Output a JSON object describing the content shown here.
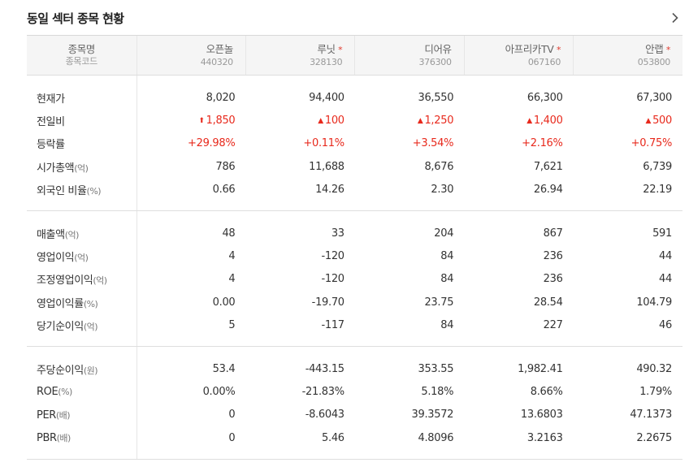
{
  "header": {
    "title": "동일 섹터 종목 현황"
  },
  "table": {
    "header_row": {
      "name_label": "종목명",
      "code_label": "종목코드"
    },
    "companies": [
      {
        "name": "오픈놀",
        "code": "440320",
        "star": ""
      },
      {
        "name": "루닛",
        "code": "328130",
        "star": "*"
      },
      {
        "name": "디어유",
        "code": "376300",
        "star": ""
      },
      {
        "name": "아프리카TV",
        "code": "067160",
        "star": "*"
      },
      {
        "name": "안랩",
        "code": "053800",
        "star": "*"
      }
    ],
    "groups": [
      {
        "rows": [
          {
            "label": "현재가",
            "unit": "",
            "values": [
              "8,020",
              "94,400",
              "36,550",
              "66,300",
              "67,300"
            ],
            "style": "plain"
          },
          {
            "label": "전일비",
            "unit": "",
            "values": [
              "1,850",
              "100",
              "1,250",
              "1,400",
              "500"
            ],
            "style": "red",
            "arrows": [
              "⬆",
              "▲",
              "▲",
              "▲",
              "▲"
            ]
          },
          {
            "label": "등락률",
            "unit": "",
            "values": [
              "+29.98%",
              "+0.11%",
              "+3.54%",
              "+2.16%",
              "+0.75%"
            ],
            "style": "red"
          },
          {
            "label": "시가총액",
            "unit": "(억)",
            "values": [
              "786",
              "11,688",
              "8,676",
              "7,621",
              "6,739"
            ],
            "style": "plain"
          },
          {
            "label": "외국인 비율",
            "unit": "(%)",
            "values": [
              "0.66",
              "14.26",
              "2.30",
              "26.94",
              "22.19"
            ],
            "style": "plain"
          }
        ]
      },
      {
        "rows": [
          {
            "label": "매출액",
            "unit": "(억)",
            "values": [
              "48",
              "33",
              "204",
              "867",
              "591"
            ],
            "style": "plain"
          },
          {
            "label": "영업이익",
            "unit": "(억)",
            "values": [
              "4",
              "-120",
              "84",
              "236",
              "44"
            ],
            "style": "plain"
          },
          {
            "label": "조정영업이익",
            "unit": "(억)",
            "values": [
              "4",
              "-120",
              "84",
              "236",
              "44"
            ],
            "style": "plain"
          },
          {
            "label": "영업이익률",
            "unit": "(%)",
            "values": [
              "0.00",
              "-19.70",
              "23.75",
              "28.54",
              "104.79"
            ],
            "style": "plain"
          },
          {
            "label": "당기순이익",
            "unit": "(억)",
            "values": [
              "5",
              "-117",
              "84",
              "227",
              "46"
            ],
            "style": "plain"
          }
        ]
      },
      {
        "rows": [
          {
            "label": "주당순이익",
            "unit": "(원)",
            "values": [
              "53.4",
              "-443.15",
              "353.55",
              "1,982.41",
              "490.32"
            ],
            "style": "plain"
          },
          {
            "label": "ROE",
            "unit": "(%)",
            "values": [
              "0.00%",
              "-21.83%",
              "5.18%",
              "8.66%",
              "1.79%"
            ],
            "style": "plain"
          },
          {
            "label": "PER",
            "unit": "(배)",
            "values": [
              "0",
              "-8.6043",
              "39.3572",
              "13.6803",
              "47.1373"
            ],
            "style": "plain"
          },
          {
            "label": "PBR",
            "unit": "(배)",
            "values": [
              "0",
              "5.46",
              "4.8096",
              "3.2163",
              "2.2675"
            ],
            "style": "plain"
          }
        ]
      }
    ]
  },
  "colors": {
    "positive": "#e8291c",
    "header_bg": "#f5f5f5",
    "star": "#e03a2e"
  },
  "icons": {
    "more": "chevron-right-icon",
    "up_arrow": "triangle-up-icon"
  }
}
